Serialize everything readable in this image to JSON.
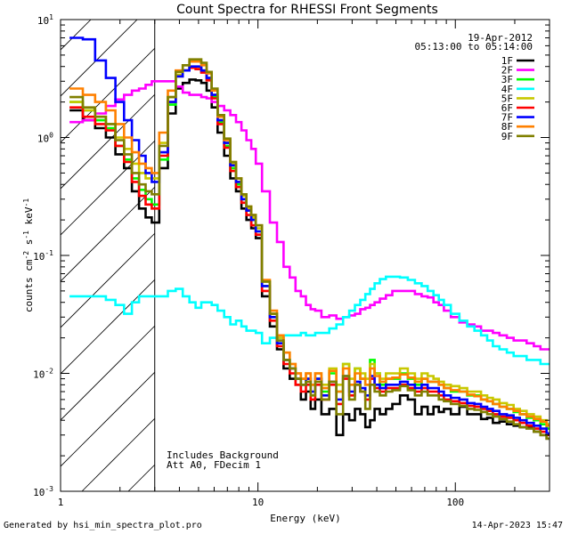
{
  "chart_data": {
    "type": "line",
    "title": "Count Spectra for RHESSI Front Segments",
    "xlabel": "Energy (keV)",
    "ylabel_parts": [
      "counts cm",
      "-2",
      " s",
      "-1",
      " keV",
      "-1"
    ],
    "xscale": "log",
    "yscale": "log",
    "xlim": [
      1,
      300
    ],
    "ylim": [
      0.001,
      10
    ],
    "x_ticks": [
      {
        "value": 1,
        "label": "1"
      },
      {
        "value": 10,
        "label": "10"
      },
      {
        "value": 100,
        "label": "100"
      }
    ],
    "y_ticks": [
      {
        "value": 0.001,
        "base": "10",
        "exp": "-3"
      },
      {
        "value": 0.01,
        "base": "10",
        "exp": "-2"
      },
      {
        "value": 0.1,
        "base": "10",
        "exp": "-1"
      },
      {
        "value": 1,
        "base": "10",
        "exp": "0"
      },
      {
        "value": 10,
        "base": "10",
        "exp": "1"
      }
    ],
    "date": "19-Apr-2012",
    "time_range": "05:13:00 to 05:14:00",
    "hatched_region_xmax": 3,
    "annotations": [
      "Includes Background",
      "Att A0, FDecim 1"
    ],
    "x": [
      1.2,
      1.4,
      1.6,
      1.8,
      2.0,
      2.2,
      2.4,
      2.6,
      2.8,
      3.0,
      3.33,
      3.67,
      4.0,
      4.33,
      4.67,
      5.0,
      5.33,
      5.67,
      6.0,
      6.5,
      7,
      7.5,
      8,
      8.5,
      9,
      9.5,
      10,
      11,
      12,
      13,
      14,
      15,
      16,
      17,
      18,
      19,
      20,
      22,
      24,
      26,
      28,
      30,
      32,
      34,
      36,
      38,
      40,
      43,
      46,
      50,
      55,
      60,
      65,
      70,
      75,
      80,
      85,
      90,
      100,
      110,
      120,
      130,
      140,
      150,
      160,
      175,
      190,
      205,
      220,
      240,
      260,
      280,
      300
    ],
    "series": [
      {
        "name": "1F",
        "color": "#000000",
        "values": [
          1.7,
          1.4,
          1.2,
          1.0,
          0.72,
          0.55,
          0.35,
          0.25,
          0.21,
          0.19,
          0.55,
          1.6,
          2.6,
          2.9,
          3.1,
          3.05,
          2.9,
          2.5,
          1.8,
          1.1,
          0.7,
          0.45,
          0.35,
          0.25,
          0.2,
          0.17,
          0.14,
          0.045,
          0.025,
          0.016,
          0.011,
          0.009,
          0.008,
          0.006,
          0.007,
          0.005,
          0.006,
          0.0045,
          0.005,
          0.003,
          0.0045,
          0.004,
          0.005,
          0.0045,
          0.0035,
          0.004,
          0.005,
          0.0045,
          0.005,
          0.0055,
          0.0065,
          0.006,
          0.0045,
          0.0052,
          0.0045,
          0.0052,
          0.0047,
          0.005,
          0.0045,
          0.0052,
          0.0045,
          0.0045,
          0.0041,
          0.0042,
          0.0038,
          0.0039,
          0.0037,
          0.0036,
          0.0035,
          0.0035,
          0.0032,
          0.003,
          0.0028
        ]
      },
      {
        "name": "2F",
        "color": "#ff00ff",
        "values": [
          1.35,
          1.4,
          1.6,
          1.85,
          2.1,
          2.3,
          2.5,
          2.6,
          2.8,
          3.0,
          3.0,
          3.0,
          2.7,
          2.4,
          2.3,
          2.3,
          2.2,
          2.15,
          2.0,
          1.85,
          1.7,
          1.55,
          1.35,
          1.15,
          0.95,
          0.8,
          0.6,
          0.35,
          0.19,
          0.13,
          0.08,
          0.065,
          0.05,
          0.045,
          0.038,
          0.035,
          0.034,
          0.03,
          0.031,
          0.029,
          0.03,
          0.031,
          0.032,
          0.035,
          0.036,
          0.038,
          0.04,
          0.043,
          0.046,
          0.05,
          0.05,
          0.05,
          0.047,
          0.045,
          0.044,
          0.04,
          0.038,
          0.034,
          0.03,
          0.027,
          0.026,
          0.025,
          0.023,
          0.023,
          0.022,
          0.021,
          0.02,
          0.019,
          0.019,
          0.018,
          0.017,
          0.016,
          0.016
        ]
      },
      {
        "name": "3F",
        "color": "#00ff00",
        "values": [
          2.0,
          1.7,
          1.4,
          1.2,
          0.85,
          0.65,
          0.45,
          0.36,
          0.3,
          0.27,
          0.65,
          1.9,
          3.3,
          3.7,
          3.9,
          3.9,
          3.6,
          3.1,
          2.2,
          1.35,
          0.85,
          0.55,
          0.4,
          0.3,
          0.24,
          0.2,
          0.16,
          0.055,
          0.03,
          0.018,
          0.013,
          0.011,
          0.009,
          0.008,
          0.009,
          0.008,
          0.009,
          0.007,
          0.01,
          0.007,
          0.012,
          0.008,
          0.011,
          0.009,
          0.008,
          0.013,
          0.01,
          0.008,
          0.009,
          0.009,
          0.01,
          0.009,
          0.008,
          0.009,
          0.0085,
          0.0085,
          0.008,
          0.0075,
          0.007,
          0.007,
          0.0065,
          0.0065,
          0.006,
          0.0058,
          0.0055,
          0.0052,
          0.005,
          0.0047,
          0.0045,
          0.0042,
          0.004,
          0.0037,
          0.0034
        ]
      },
      {
        "name": "4F",
        "color": "#00ffff",
        "values": [
          0.045,
          0.045,
          0.045,
          0.042,
          0.038,
          0.032,
          0.04,
          0.045,
          0.045,
          0.045,
          0.045,
          0.05,
          0.052,
          0.045,
          0.04,
          0.036,
          0.04,
          0.04,
          0.038,
          0.034,
          0.03,
          0.026,
          0.028,
          0.025,
          0.023,
          0.023,
          0.022,
          0.018,
          0.02,
          0.02,
          0.021,
          0.021,
          0.021,
          0.022,
          0.021,
          0.021,
          0.022,
          0.022,
          0.024,
          0.026,
          0.03,
          0.034,
          0.038,
          0.042,
          0.047,
          0.052,
          0.058,
          0.063,
          0.066,
          0.066,
          0.065,
          0.062,
          0.058,
          0.055,
          0.05,
          0.046,
          0.042,
          0.038,
          0.032,
          0.028,
          0.025,
          0.023,
          0.021,
          0.019,
          0.017,
          0.016,
          0.015,
          0.014,
          0.014,
          0.013,
          0.013,
          0.012,
          0.012
        ]
      },
      {
        "name": "5F",
        "color": "#c8c800",
        "values": [
          2.0,
          1.7,
          1.5,
          1.3,
          1.0,
          0.8,
          0.6,
          0.5,
          0.45,
          0.45,
          0.9,
          2.2,
          3.4,
          3.7,
          3.9,
          3.9,
          3.7,
          3.2,
          2.3,
          1.4,
          0.9,
          0.6,
          0.42,
          0.32,
          0.25,
          0.21,
          0.17,
          0.06,
          0.032,
          0.02,
          0.015,
          0.012,
          0.01,
          0.009,
          0.01,
          0.008,
          0.01,
          0.008,
          0.011,
          0.008,
          0.012,
          0.009,
          0.011,
          0.01,
          0.009,
          0.012,
          0.01,
          0.009,
          0.01,
          0.01,
          0.011,
          0.01,
          0.009,
          0.01,
          0.0095,
          0.009,
          0.0085,
          0.008,
          0.0078,
          0.0075,
          0.007,
          0.007,
          0.0065,
          0.0062,
          0.006,
          0.0056,
          0.0054,
          0.005,
          0.0048,
          0.0045,
          0.0043,
          0.004,
          0.0037
        ]
      },
      {
        "name": "6F",
        "color": "#ff0000",
        "values": [
          1.8,
          1.5,
          1.3,
          1.15,
          0.85,
          0.62,
          0.42,
          0.32,
          0.27,
          0.25,
          0.7,
          2.0,
          3.3,
          3.7,
          3.9,
          3.8,
          3.55,
          3.05,
          2.15,
          1.3,
          0.82,
          0.52,
          0.38,
          0.28,
          0.22,
          0.18,
          0.15,
          0.05,
          0.028,
          0.017,
          0.012,
          0.01,
          0.008,
          0.007,
          0.008,
          0.006,
          0.008,
          0.006,
          0.008,
          0.0055,
          0.009,
          0.0065,
          0.008,
          0.007,
          0.006,
          0.009,
          0.0075,
          0.007,
          0.0075,
          0.0075,
          0.008,
          0.0075,
          0.007,
          0.0075,
          0.007,
          0.007,
          0.0065,
          0.006,
          0.0058,
          0.0056,
          0.0053,
          0.0052,
          0.005,
          0.0048,
          0.0045,
          0.0043,
          0.0042,
          0.004,
          0.0038,
          0.0036,
          0.0034,
          0.0032,
          0.003
        ]
      },
      {
        "name": "7F",
        "color": "#0000ff",
        "values": [
          7.0,
          6.8,
          4.5,
          3.2,
          2.0,
          1.4,
          0.95,
          0.7,
          0.5,
          0.42,
          0.75,
          2.0,
          3.3,
          3.7,
          4.0,
          4.0,
          3.7,
          3.2,
          2.3,
          1.4,
          0.9,
          0.58,
          0.42,
          0.3,
          0.24,
          0.2,
          0.16,
          0.055,
          0.03,
          0.018,
          0.013,
          0.011,
          0.009,
          0.008,
          0.009,
          0.007,
          0.009,
          0.0065,
          0.0085,
          0.006,
          0.0095,
          0.007,
          0.0085,
          0.0075,
          0.0065,
          0.0095,
          0.008,
          0.0075,
          0.008,
          0.008,
          0.0085,
          0.008,
          0.0075,
          0.008,
          0.0075,
          0.0075,
          0.007,
          0.0065,
          0.0062,
          0.006,
          0.0056,
          0.0055,
          0.0052,
          0.005,
          0.0048,
          0.0045,
          0.0044,
          0.0042,
          0.004,
          0.0038,
          0.0036,
          0.0034,
          0.0031
        ]
      },
      {
        "name": "8F",
        "color": "#ff8000",
        "values": [
          2.6,
          2.3,
          2.0,
          1.7,
          1.3,
          1.0,
          0.75,
          0.6,
          0.55,
          0.5,
          1.1,
          2.5,
          3.7,
          4.1,
          4.4,
          4.4,
          4.1,
          3.5,
          2.5,
          1.5,
          0.95,
          0.62,
          0.45,
          0.33,
          0.26,
          0.22,
          0.18,
          0.062,
          0.034,
          0.021,
          0.015,
          0.012,
          0.01,
          0.009,
          0.01,
          0.008,
          0.01,
          0.0075,
          0.0105,
          0.007,
          0.011,
          0.008,
          0.01,
          0.009,
          0.008,
          0.011,
          0.0095,
          0.0085,
          0.009,
          0.0092,
          0.0098,
          0.0092,
          0.0085,
          0.009,
          0.0085,
          0.0085,
          0.008,
          0.0075,
          0.0072,
          0.007,
          0.0066,
          0.0064,
          0.006,
          0.0058,
          0.0055,
          0.0052,
          0.005,
          0.0048,
          0.0045,
          0.0043,
          0.0041,
          0.0039,
          0.0036
        ]
      },
      {
        "name": "9F",
        "color": "#808000",
        "values": [
          2.2,
          1.8,
          1.5,
          1.3,
          0.95,
          0.72,
          0.5,
          0.4,
          0.35,
          0.33,
          0.85,
          2.2,
          3.6,
          4.1,
          4.6,
          4.6,
          4.3,
          3.6,
          2.6,
          1.55,
          0.98,
          0.62,
          0.45,
          0.33,
          0.26,
          0.22,
          0.18,
          0.06,
          0.032,
          0.019,
          0.013,
          0.011,
          0.009,
          0.008,
          0.0085,
          0.0065,
          0.0085,
          0.006,
          0.0085,
          0.0045,
          0.0095,
          0.006,
          0.008,
          0.007,
          0.005,
          0.008,
          0.007,
          0.0065,
          0.007,
          0.0072,
          0.0078,
          0.0072,
          0.0065,
          0.007,
          0.0065,
          0.0065,
          0.006,
          0.0058,
          0.0055,
          0.0053,
          0.005,
          0.0049,
          0.0047,
          0.0045,
          0.0043,
          0.0041,
          0.0039,
          0.0037,
          0.0035,
          0.0034,
          0.0032,
          0.003,
          0.0028
        ]
      }
    ]
  },
  "footer": {
    "left": "Generated by hsi_min_spectra_plot.pro",
    "right": "14-Apr-2023 15:47"
  }
}
